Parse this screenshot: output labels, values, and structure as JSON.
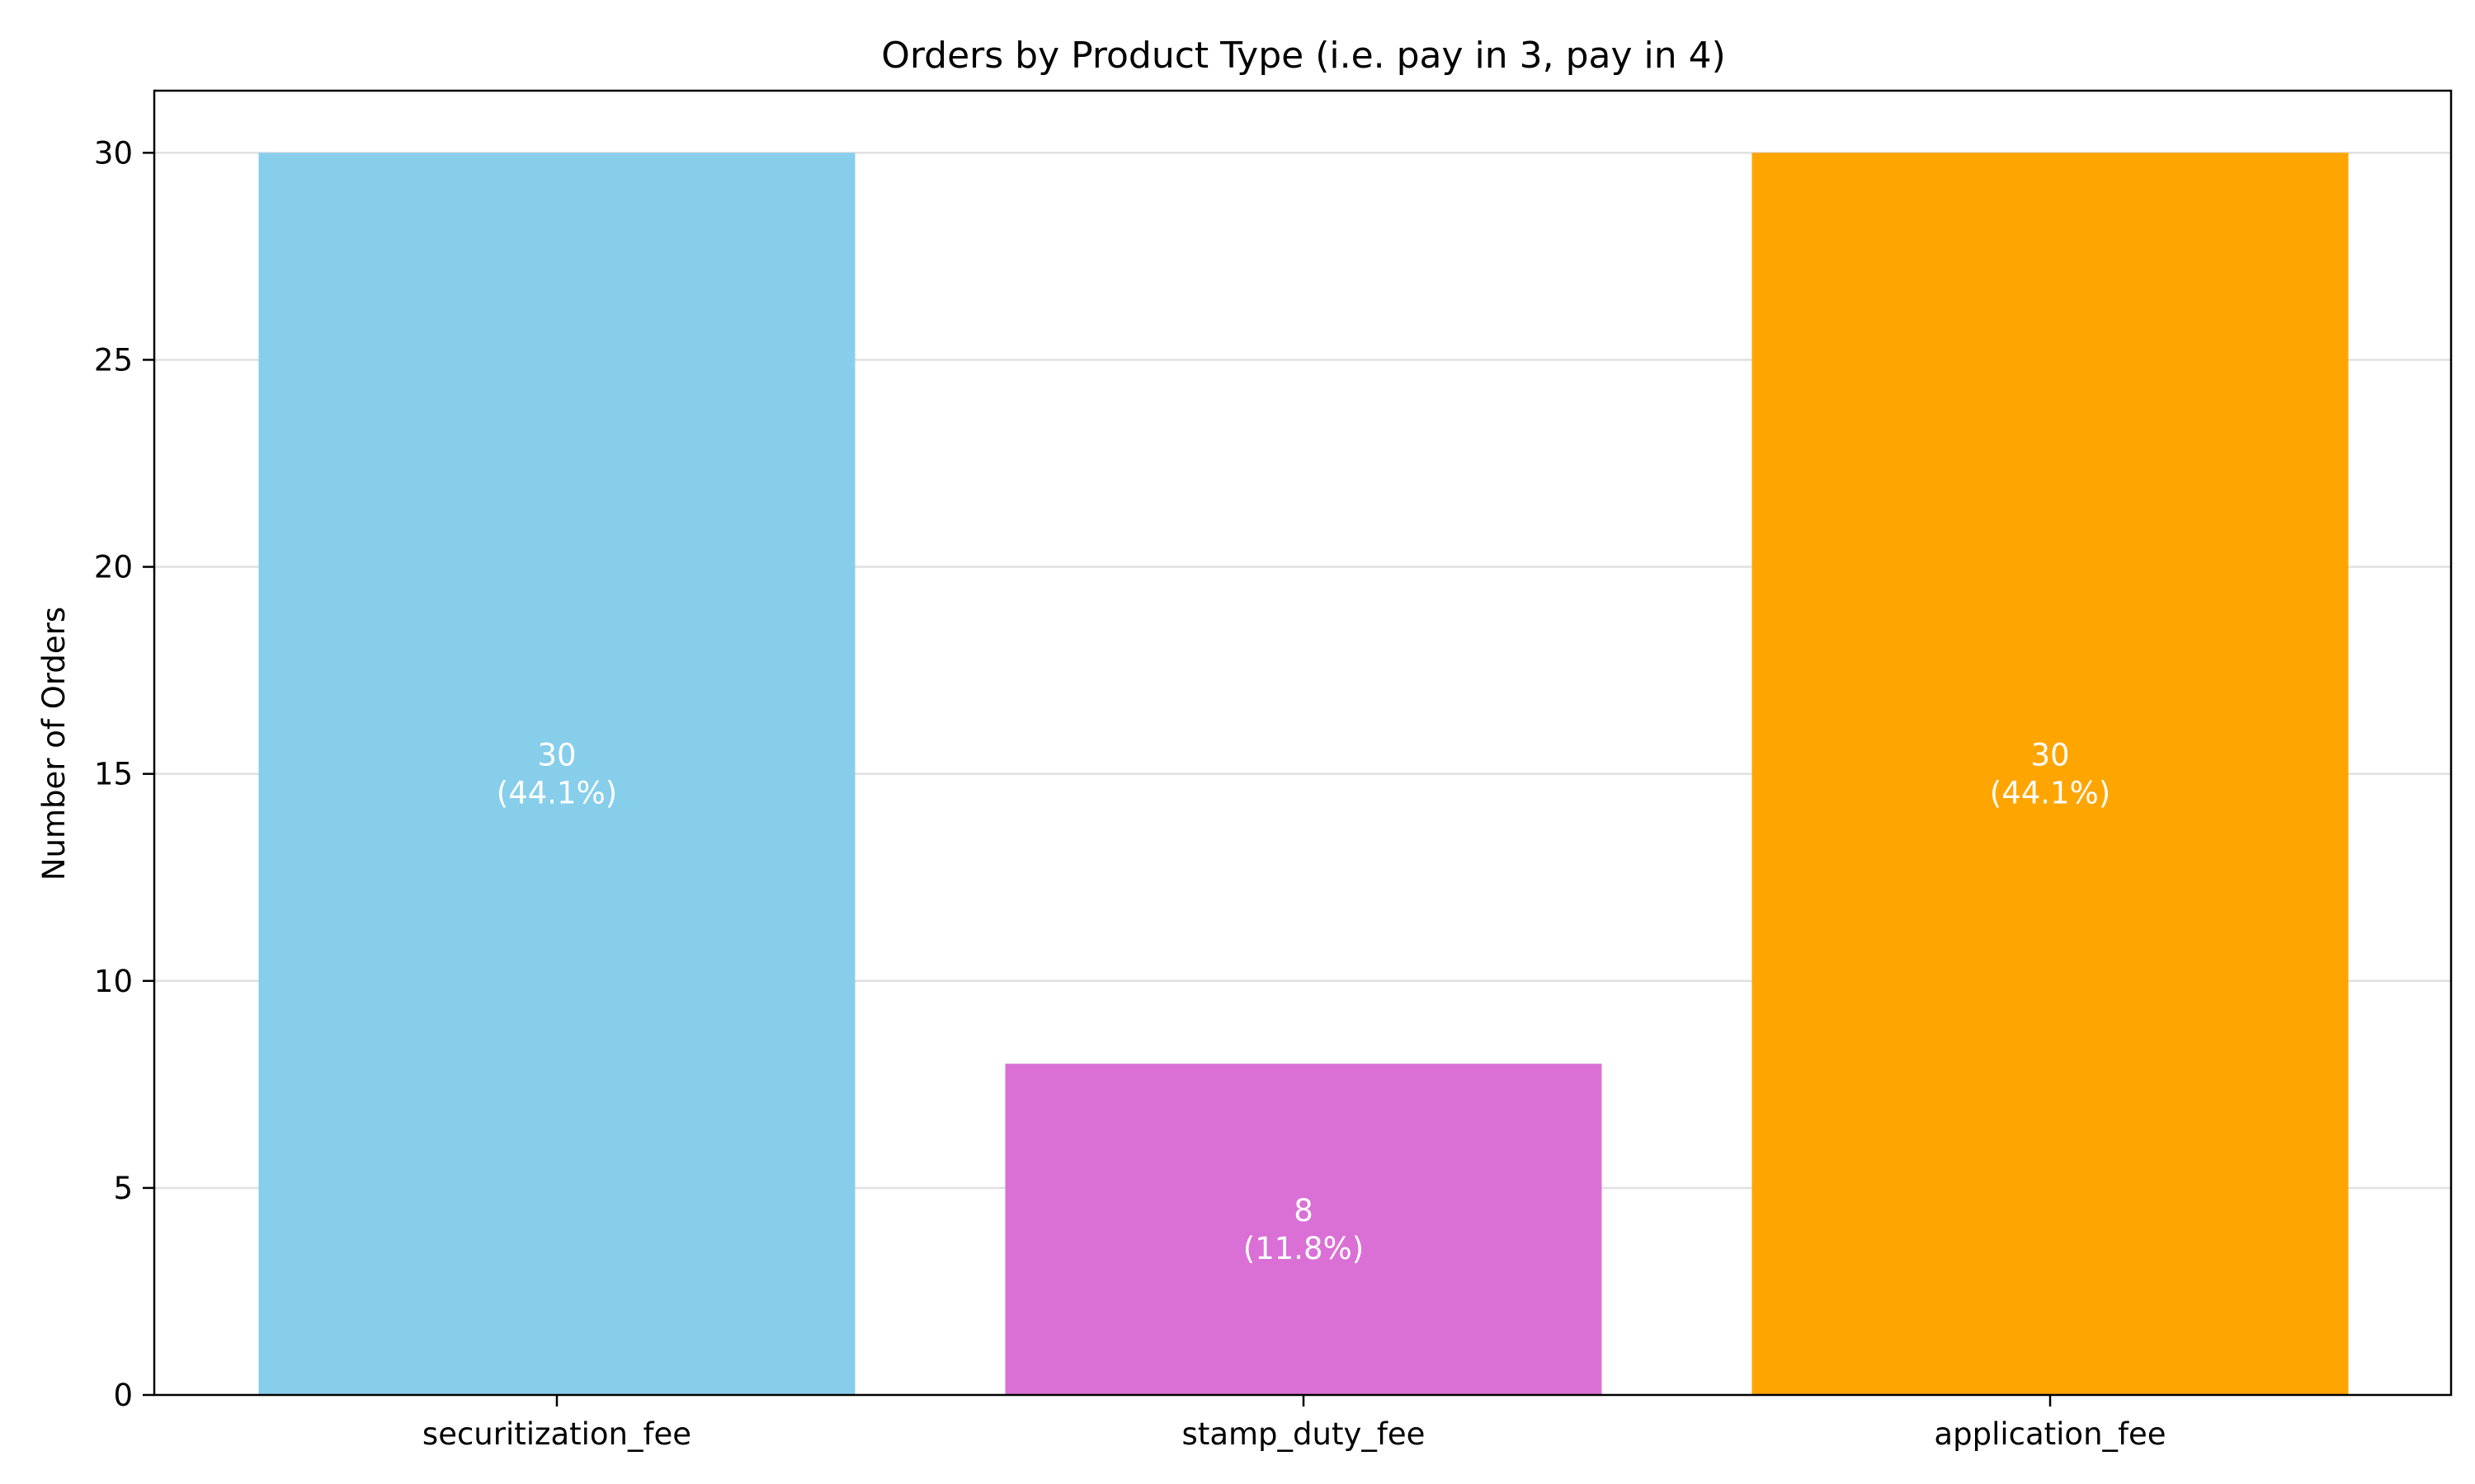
{
  "chart_data": {
    "type": "bar",
    "title": "Orders by Product Type (i.e. pay in 3, pay in 4)",
    "xlabel": "",
    "ylabel": "Number of Orders",
    "categories": [
      "securitization_fee",
      "stamp_duty_fee",
      "application_fee"
    ],
    "values": [
      30,
      8,
      30
    ],
    "bar_labels": [
      [
        "30",
        "(44.1%)"
      ],
      [
        "8",
        "(11.8%)"
      ],
      [
        "30",
        "(44.1%)"
      ]
    ],
    "colors": [
      "#87CEEB",
      "#DA70D6",
      "#FFA500"
    ],
    "ylim": [
      0,
      31.5
    ],
    "yticks": [
      0,
      5,
      10,
      15,
      20,
      25,
      30
    ],
    "grid": "y",
    "legend": "none"
  }
}
